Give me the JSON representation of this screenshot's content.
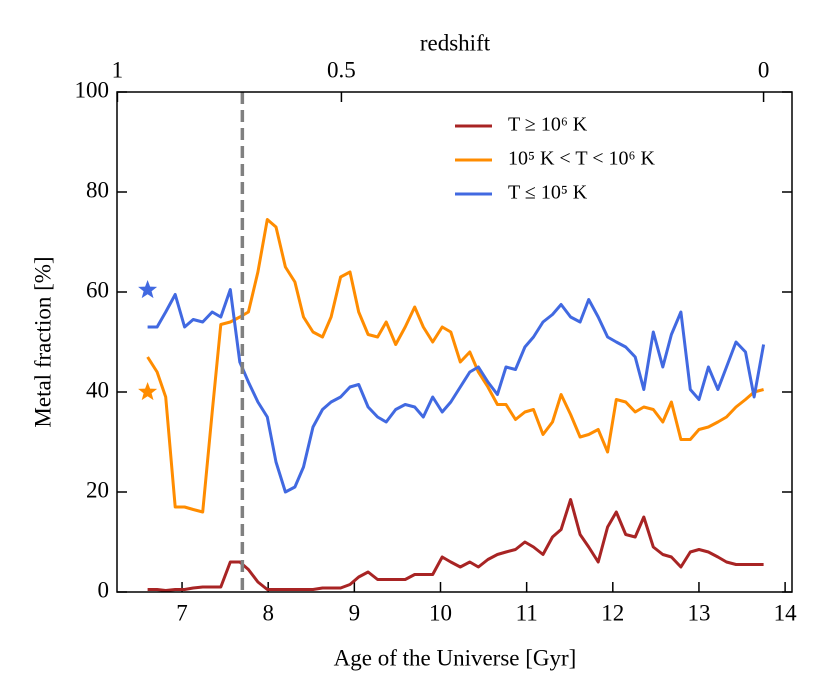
{
  "chart_data": {
    "type": "line",
    "xlabel": "Age of the Universe [Gyr]",
    "ylabel": "Metal fraction [%]",
    "x2label": "redshift",
    "xlim": [
      6.245,
      14.08
    ],
    "ylim": [
      0,
      100
    ],
    "xticks": [
      7,
      8,
      9,
      10,
      11,
      12,
      13,
      14
    ],
    "yticks": [
      0,
      20,
      40,
      60,
      80,
      100
    ],
    "x2ticks": [
      {
        "value": 6.25,
        "label": "1"
      },
      {
        "value": 8.85,
        "label": "0.5"
      },
      {
        "value": 13.75,
        "label": "0"
      }
    ],
    "legend": "upper right",
    "x": [
      6.6,
      6.71,
      6.81,
      6.92,
      7.03,
      7.13,
      7.24,
      7.35,
      7.45,
      7.56,
      7.67,
      7.77,
      7.88,
      7.99,
      8.09,
      8.2,
      8.31,
      8.41,
      8.52,
      8.63,
      8.73,
      8.84,
      8.95,
      9.05,
      9.16,
      9.27,
      9.37,
      9.48,
      9.59,
      9.7,
      9.8,
      9.91,
      10.02,
      10.12,
      10.23,
      10.34,
      10.44,
      10.55,
      10.66,
      10.76,
      10.87,
      10.98,
      11.08,
      11.19,
      11.3,
      11.4,
      11.51,
      11.62,
      11.72,
      11.83,
      11.94,
      12.04,
      12.15,
      12.26,
      12.36,
      12.47,
      12.58,
      12.68,
      12.79,
      12.9,
      13.0,
      13.11,
      13.22,
      13.32,
      13.43,
      13.54,
      13.64,
      13.75
    ],
    "series": [
      {
        "name": "T ≥ 10⁶ K",
        "color": "#a82424",
        "values": [
          0.5,
          0.5,
          0.3,
          0.5,
          0.5,
          0.8,
          1,
          1,
          1,
          6,
          6,
          4.5,
          2,
          0.5,
          0.5,
          0.5,
          0.5,
          0.5,
          0.5,
          0.8,
          0.8,
          0.8,
          1.5,
          3,
          4,
          2.5,
          2.5,
          2.5,
          2.5,
          3.5,
          3.5,
          3.5,
          7,
          6,
          5,
          6,
          5,
          6.5,
          7.5,
          8,
          8.5,
          10,
          9,
          7.5,
          11,
          12.5,
          18.5,
          11.5,
          9,
          6,
          13,
          16,
          11.5,
          11,
          15,
          9,
          7.5,
          7,
          5,
          8,
          8.5,
          8,
          7,
          6,
          5.5,
          5.5,
          5.5,
          5.5
        ]
      },
      {
        "name": "10⁵ K < T < 10⁶ K",
        "color": "#ff8c00",
        "values": [
          47,
          44,
          39,
          17,
          17,
          16.5,
          16,
          36,
          53.5,
          54,
          55,
          56,
          64,
          74.5,
          73,
          65,
          62,
          55,
          52,
          51,
          55,
          63,
          64,
          56,
          51.5,
          51,
          54,
          49.5,
          53,
          57,
          53,
          50,
          53,
          52,
          46,
          48,
          44,
          41,
          37.5,
          37.5,
          34.5,
          36,
          36.5,
          31.5,
          34,
          39.5,
          35.5,
          31,
          31.5,
          32.5,
          28,
          38.5,
          38,
          36,
          37,
          36.5,
          34,
          38,
          30.5,
          30.5,
          32.5,
          33,
          34,
          35,
          37,
          38.5,
          40,
          40.5
        ]
      },
      {
        "name": "T ≤ 10⁵ K",
        "color": "#4169e1",
        "values": [
          53,
          53,
          56,
          59.5,
          53,
          54.5,
          54,
          56,
          55,
          60.5,
          46,
          42,
          38,
          35,
          26,
          20,
          21,
          25,
          33,
          36.5,
          38,
          39,
          41,
          41.5,
          37,
          35,
          34,
          36.5,
          37.5,
          37,
          35,
          39,
          36,
          38,
          41,
          44,
          45,
          42,
          39.5,
          45,
          44.5,
          49,
          51,
          54,
          55.5,
          57.5,
          55,
          54,
          58.5,
          55,
          51,
          50,
          49,
          47,
          40.5,
          52,
          45,
          51.5,
          56,
          40.5,
          38.5,
          45,
          40.5,
          45,
          50,
          48,
          39,
          49.5
        ]
      }
    ],
    "vline": {
      "x": 7.7,
      "color": "#808080"
    },
    "markers": [
      {
        "x": 6.6,
        "y": 60.4,
        "color": "#4169e1"
      },
      {
        "x": 6.6,
        "y": 40,
        "color": "#ff8c00"
      }
    ]
  }
}
